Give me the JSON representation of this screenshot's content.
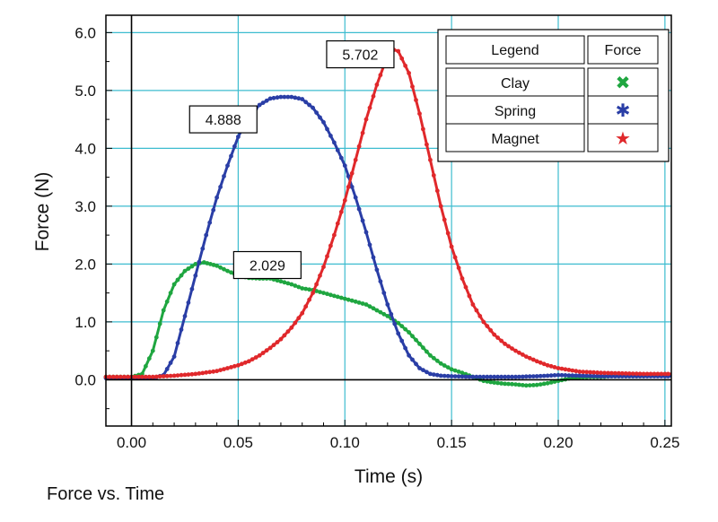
{
  "caption": "Force vs. Time",
  "chart_data": {
    "type": "line",
    "title": "Force vs. Time",
    "xlabel": "Time (s)",
    "ylabel": "Force (N)",
    "xlim": [
      -0.012,
      0.253
    ],
    "ylim": [
      -0.8,
      6.3
    ],
    "grid": true,
    "x_ticks": [
      0.0,
      0.05,
      0.1,
      0.15,
      0.2,
      0.25
    ],
    "x_tick_labels": [
      "0.00",
      "0.05",
      "0.10",
      "0.15",
      "0.20",
      "0.25"
    ],
    "y_ticks": [
      0.0,
      1.0,
      2.0,
      3.0,
      4.0,
      5.0,
      6.0
    ],
    "y_tick_labels": [
      "0.0",
      "1.0",
      "2.0",
      "3.0",
      "4.0",
      "5.0",
      "6.0"
    ],
    "legend": {
      "position": "top-right",
      "header": "Legend",
      "marker_header": "Force"
    },
    "series": [
      {
        "name": "Clay",
        "color": "#1fa640",
        "marker": "x",
        "symbol": "✖",
        "x": [
          -0.012,
          0.0,
          0.005,
          0.01,
          0.015,
          0.02,
          0.025,
          0.03,
          0.034,
          0.04,
          0.045,
          0.05,
          0.055,
          0.06,
          0.065,
          0.07,
          0.075,
          0.08,
          0.085,
          0.09,
          0.095,
          0.1,
          0.105,
          0.11,
          0.115,
          0.12,
          0.125,
          0.13,
          0.135,
          0.14,
          0.145,
          0.15,
          0.155,
          0.16,
          0.165,
          0.17,
          0.175,
          0.18,
          0.185,
          0.19,
          0.195,
          0.2,
          0.205,
          0.21,
          0.215,
          0.22,
          0.225,
          0.23,
          0.235,
          0.24,
          0.245,
          0.25,
          0.253
        ],
        "y": [
          0.05,
          0.05,
          0.1,
          0.5,
          1.2,
          1.65,
          1.88,
          2.0,
          2.029,
          1.97,
          1.88,
          1.8,
          1.76,
          1.75,
          1.75,
          1.7,
          1.65,
          1.58,
          1.55,
          1.5,
          1.45,
          1.4,
          1.35,
          1.3,
          1.2,
          1.1,
          0.98,
          0.82,
          0.62,
          0.42,
          0.28,
          0.18,
          0.12,
          0.05,
          -0.02,
          -0.05,
          -0.07,
          -0.08,
          -0.1,
          -0.09,
          -0.06,
          -0.02,
          0.02,
          0.04,
          0.05,
          0.05,
          0.06,
          0.06,
          0.06,
          0.06,
          0.07,
          0.07,
          0.07
        ]
      },
      {
        "name": "Spring",
        "color": "#2a3ea6",
        "marker": "asterisk",
        "symbol": "✱",
        "x": [
          -0.012,
          0.0,
          0.005,
          0.01,
          0.015,
          0.02,
          0.025,
          0.03,
          0.035,
          0.04,
          0.045,
          0.05,
          0.055,
          0.06,
          0.065,
          0.07,
          0.075,
          0.08,
          0.085,
          0.09,
          0.095,
          0.1,
          0.105,
          0.11,
          0.115,
          0.12,
          0.125,
          0.13,
          0.135,
          0.14,
          0.145,
          0.15,
          0.16,
          0.17,
          0.18,
          0.19,
          0.2,
          0.21,
          0.22,
          0.23,
          0.24,
          0.25,
          0.253
        ],
        "y": [
          0.03,
          0.03,
          0.03,
          0.03,
          0.08,
          0.4,
          1.1,
          1.8,
          2.5,
          3.15,
          3.7,
          4.2,
          4.55,
          4.75,
          4.86,
          4.888,
          4.888,
          4.85,
          4.7,
          4.45,
          4.1,
          3.7,
          3.15,
          2.55,
          1.9,
          1.3,
          0.8,
          0.42,
          0.2,
          0.1,
          0.07,
          0.06,
          0.05,
          0.05,
          0.05,
          0.06,
          0.08,
          0.07,
          0.06,
          0.06,
          0.06,
          0.06,
          0.06
        ]
      },
      {
        "name": "Magnet",
        "color": "#e0282b",
        "marker": "star",
        "symbol": "★",
        "x": [
          -0.012,
          0.0,
          0.01,
          0.02,
          0.03,
          0.04,
          0.05,
          0.055,
          0.06,
          0.065,
          0.07,
          0.075,
          0.08,
          0.085,
          0.09,
          0.095,
          0.1,
          0.105,
          0.11,
          0.115,
          0.12,
          0.123,
          0.125,
          0.13,
          0.135,
          0.14,
          0.145,
          0.15,
          0.155,
          0.16,
          0.165,
          0.17,
          0.175,
          0.18,
          0.185,
          0.19,
          0.195,
          0.2,
          0.205,
          0.21,
          0.22,
          0.23,
          0.24,
          0.25,
          0.253
        ],
        "y": [
          0.05,
          0.05,
          0.05,
          0.07,
          0.1,
          0.15,
          0.25,
          0.32,
          0.42,
          0.55,
          0.7,
          0.9,
          1.15,
          1.5,
          1.95,
          2.5,
          3.1,
          3.8,
          4.5,
          5.1,
          5.6,
          5.702,
          5.68,
          5.3,
          4.6,
          3.8,
          3.0,
          2.3,
          1.75,
          1.3,
          1.0,
          0.78,
          0.62,
          0.5,
          0.4,
          0.32,
          0.25,
          0.2,
          0.17,
          0.14,
          0.12,
          0.11,
          0.1,
          0.1,
          0.1
        ]
      }
    ],
    "annotations": [
      {
        "text": "5.702",
        "x": 0.123,
        "y": 5.702
      },
      {
        "text": "4.888",
        "x": 0.0735,
        "y": 4.888
      },
      {
        "text": "2.029",
        "x": 0.034,
        "y": 2.029
      }
    ]
  }
}
